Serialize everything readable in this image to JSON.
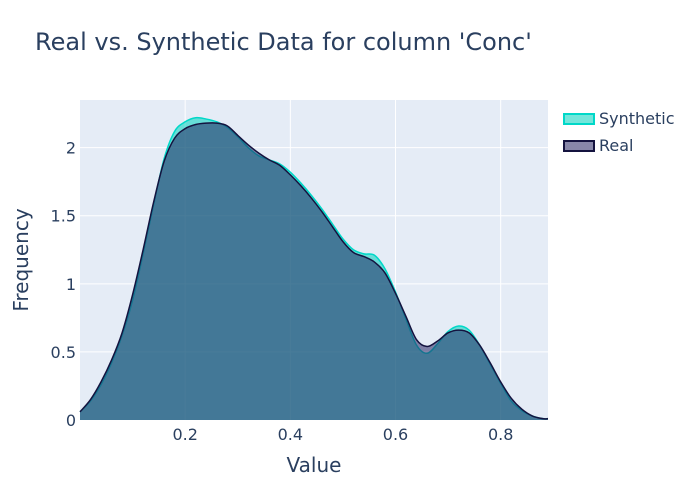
{
  "chart_data": {
    "type": "area",
    "title": "Real vs. Synthetic Data for column 'Conc'",
    "xlabel": "Value",
    "ylabel": "Frequency",
    "xlim": [
      0.0,
      0.89
    ],
    "ylim": [
      0,
      2.35
    ],
    "x_ticks": [
      0.2,
      0.4,
      0.6,
      0.8
    ],
    "x_tick_labels": [
      "0.2",
      "0.4",
      "0.6",
      "0.8"
    ],
    "y_ticks": [
      0,
      0.5,
      1,
      1.5,
      2
    ],
    "y_tick_labels": [
      "0",
      "0.5",
      "1",
      "1.5",
      "2"
    ],
    "grid": true,
    "legend_position": "top-right",
    "series": [
      {
        "name": "Synthetic",
        "line_color": "#00d8c8",
        "fill_color": "rgba(0, 210, 190, 0.55)",
        "x": [
          0.0,
          0.02,
          0.04,
          0.06,
          0.08,
          0.1,
          0.12,
          0.14,
          0.16,
          0.18,
          0.2,
          0.22,
          0.24,
          0.26,
          0.28,
          0.3,
          0.32,
          0.34,
          0.36,
          0.38,
          0.4,
          0.42,
          0.44,
          0.46,
          0.48,
          0.5,
          0.52,
          0.54,
          0.56,
          0.58,
          0.6,
          0.62,
          0.64,
          0.66,
          0.68,
          0.7,
          0.72,
          0.74,
          0.76,
          0.78,
          0.8,
          0.82,
          0.84,
          0.86,
          0.88,
          0.89
        ],
        "y": [
          0.06,
          0.14,
          0.26,
          0.42,
          0.62,
          0.88,
          1.22,
          1.58,
          1.92,
          2.12,
          2.19,
          2.22,
          2.21,
          2.19,
          2.15,
          2.08,
          2.0,
          1.94,
          1.91,
          1.88,
          1.82,
          1.74,
          1.65,
          1.55,
          1.44,
          1.33,
          1.25,
          1.22,
          1.21,
          1.11,
          0.94,
          0.74,
          0.55,
          0.49,
          0.56,
          0.65,
          0.69,
          0.66,
          0.55,
          0.41,
          0.27,
          0.14,
          0.07,
          0.03,
          0.01,
          0.01
        ]
      },
      {
        "name": "Real",
        "line_color": "#14133f",
        "fill_color": "rgba(38, 36, 98, 0.55)",
        "x": [
          0.0,
          0.02,
          0.04,
          0.06,
          0.08,
          0.1,
          0.12,
          0.14,
          0.16,
          0.18,
          0.2,
          0.22,
          0.24,
          0.26,
          0.28,
          0.3,
          0.32,
          0.34,
          0.36,
          0.38,
          0.4,
          0.42,
          0.44,
          0.46,
          0.48,
          0.5,
          0.52,
          0.54,
          0.56,
          0.58,
          0.6,
          0.62,
          0.64,
          0.66,
          0.68,
          0.7,
          0.72,
          0.74,
          0.76,
          0.78,
          0.8,
          0.82,
          0.84,
          0.86,
          0.88,
          0.89
        ],
        "y": [
          0.06,
          0.15,
          0.28,
          0.44,
          0.64,
          0.92,
          1.25,
          1.6,
          1.9,
          2.07,
          2.14,
          2.17,
          2.18,
          2.18,
          2.16,
          2.09,
          2.02,
          1.96,
          1.91,
          1.87,
          1.8,
          1.72,
          1.63,
          1.53,
          1.42,
          1.31,
          1.23,
          1.2,
          1.16,
          1.08,
          0.93,
          0.76,
          0.59,
          0.54,
          0.58,
          0.64,
          0.66,
          0.64,
          0.55,
          0.42,
          0.28,
          0.16,
          0.08,
          0.03,
          0.01,
          0.01
        ]
      }
    ]
  }
}
